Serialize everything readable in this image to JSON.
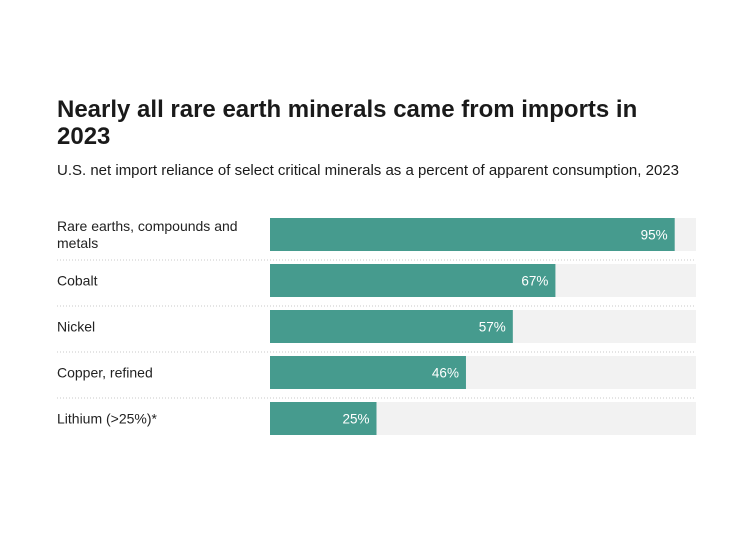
{
  "chart_data": {
    "type": "bar",
    "orientation": "horizontal",
    "title": "Nearly all rare earth minerals came from imports in 2023",
    "subtitle": "U.S. net import reliance of select critical minerals as a percent of apparent consumption, 2023",
    "categories": [
      [
        "Rare earths, compounds and",
        "metals"
      ],
      [
        "Cobalt"
      ],
      [
        "Nickel"
      ],
      [
        "Copper, refined"
      ],
      [
        "Lithium (>25%)*"
      ]
    ],
    "values": [
      95,
      67,
      57,
      46,
      25
    ],
    "value_labels": [
      "95%",
      "67%",
      "57%",
      "46%",
      "25%"
    ],
    "xlim": [
      0,
      100
    ],
    "colors": {
      "bar": "#469b8e",
      "track": "#f2f2f2",
      "divider": "#c8c8c8"
    }
  }
}
